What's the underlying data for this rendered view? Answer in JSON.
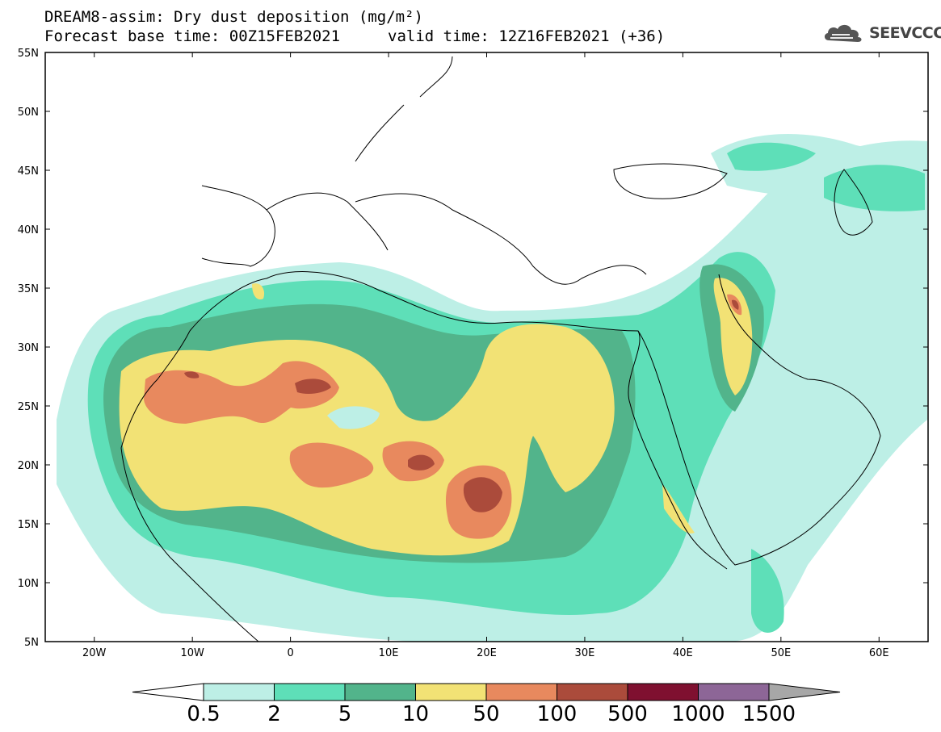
{
  "title": {
    "line1": "DREAM8-assim: Dry dust deposition (mg/m²)",
    "line2_base": "Forecast base time: 00Z15FEB2021",
    "line2_valid": "valid time: 12Z16FEB2021 (+36)"
  },
  "logo": {
    "text": "SEEVCCC",
    "icon": "cloud-logo-icon"
  },
  "map": {
    "lon_range": [
      -25,
      65
    ],
    "lat_range": [
      5,
      55
    ],
    "lon_ticks": [
      {
        "value": -20,
        "label": "20W"
      },
      {
        "value": -10,
        "label": "10W"
      },
      {
        "value": 0,
        "label": "0"
      },
      {
        "value": 10,
        "label": "10E"
      },
      {
        "value": 20,
        "label": "20E"
      },
      {
        "value": 30,
        "label": "30E"
      },
      {
        "value": 40,
        "label": "40E"
      },
      {
        "value": 50,
        "label": "50E"
      },
      {
        "value": 60,
        "label": "60E"
      }
    ],
    "lat_ticks": [
      {
        "value": 55,
        "label": "55N"
      },
      {
        "value": 50,
        "label": "50N"
      },
      {
        "value": 45,
        "label": "45N"
      },
      {
        "value": 40,
        "label": "40N"
      },
      {
        "value": 35,
        "label": "35N"
      },
      {
        "value": 30,
        "label": "30N"
      },
      {
        "value": 25,
        "label": "25N"
      },
      {
        "value": 20,
        "label": "20N"
      },
      {
        "value": 15,
        "label": "15N"
      },
      {
        "value": 10,
        "label": "10N"
      },
      {
        "value": 5,
        "label": "5N"
      }
    ]
  },
  "colorbar": {
    "labels": [
      "0.5",
      "2",
      "5",
      "10",
      "50",
      "100",
      "500",
      "1000",
      "1500"
    ],
    "colors": [
      "#bdefe6",
      "#5edfb8",
      "#52b48b",
      "#f2e275",
      "#e8895e",
      "#ab4b3b",
      "#7f1030",
      "#8d6697"
    ],
    "under_color": "#ffffff",
    "over_color": "#a7a7a7"
  }
}
